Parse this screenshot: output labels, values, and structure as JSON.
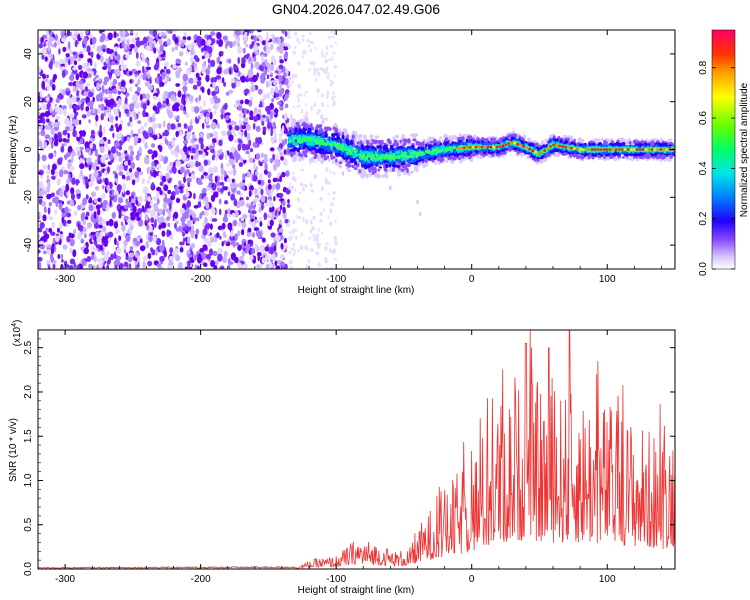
{
  "title": "GN04.2026.047.02.49.G06",
  "chart_data": [
    {
      "type": "heatmap",
      "name": "spectrogram",
      "xlabel": "Height of straight line (km)",
      "ylabel": "Frequency (Hz)",
      "xlim": [
        -320,
        150
      ],
      "ylim": [
        -50,
        50
      ],
      "xticks": [
        -300,
        -200,
        -100,
        0,
        100
      ],
      "yticks": [
        -40,
        -20,
        0,
        20,
        40
      ],
      "colorbar": {
        "label": "Normalized spectral amplitude",
        "range": [
          0.0,
          0.95
        ],
        "ticks": [
          0.0,
          0.2,
          0.4,
          0.6,
          0.8
        ]
      },
      "noise_region_end_km": -135,
      "signal_center_hz": [
        {
          "x": -135,
          "y": 4
        },
        {
          "x": -120,
          "y": 4
        },
        {
          "x": -100,
          "y": 2
        },
        {
          "x": -80,
          "y": -3
        },
        {
          "x": -60,
          "y": -3
        },
        {
          "x": -40,
          "y": -2
        },
        {
          "x": -20,
          "y": 0
        },
        {
          "x": 0,
          "y": 1
        },
        {
          "x": 20,
          "y": 1
        },
        {
          "x": 30,
          "y": 3
        },
        {
          "x": 40,
          "y": 1
        },
        {
          "x": 50,
          "y": -2
        },
        {
          "x": 60,
          "y": 2
        },
        {
          "x": 80,
          "y": 0
        },
        {
          "x": 100,
          "y": 0
        },
        {
          "x": 120,
          "y": 0
        },
        {
          "x": 150,
          "y": 0
        }
      ]
    },
    {
      "type": "line",
      "name": "snr",
      "xlabel": "Height of straight line (km)",
      "ylabel": "SNR (10 * v/v)",
      "scale_label": "(x10",
      "scale_exponent": "4",
      "xlim": [
        -320,
        150
      ],
      "ylim": [
        0,
        2.7
      ],
      "xticks": [
        -300,
        -200,
        -100,
        0,
        100
      ],
      "yticks": [
        0.0,
        0.5,
        1.0,
        1.5,
        2.0,
        2.5
      ],
      "color": "#ee3333",
      "envelope": [
        {
          "x": -320,
          "y": 0.02
        },
        {
          "x": -130,
          "y": 0.03
        },
        {
          "x": -115,
          "y": 0.12
        },
        {
          "x": -100,
          "y": 0.15
        },
        {
          "x": -85,
          "y": 0.35
        },
        {
          "x": -70,
          "y": 0.3
        },
        {
          "x": -55,
          "y": 0.2
        },
        {
          "x": -45,
          "y": 0.25
        },
        {
          "x": -35,
          "y": 0.6
        },
        {
          "x": -20,
          "y": 0.9
        },
        {
          "x": 0,
          "y": 1.3
        },
        {
          "x": 20,
          "y": 1.9
        },
        {
          "x": 40,
          "y": 2.2
        },
        {
          "x": 60,
          "y": 2.0
        },
        {
          "x": 80,
          "y": 2.0
        },
        {
          "x": 100,
          "y": 1.9
        },
        {
          "x": 120,
          "y": 1.7
        },
        {
          "x": 140,
          "y": 1.5
        },
        {
          "x": 150,
          "y": 1.7
        }
      ]
    }
  ]
}
